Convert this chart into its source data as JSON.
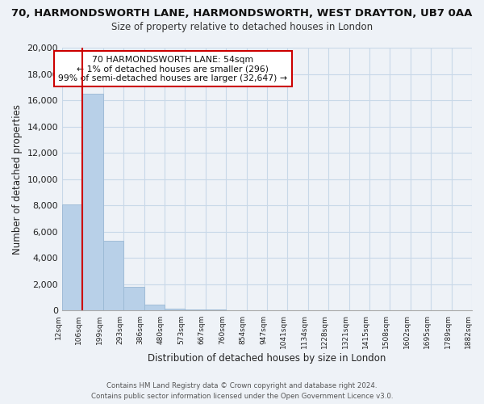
{
  "title": "70, HARMONDSWORTH LANE, HARMONDSWORTH, WEST DRAYTON, UB7 0AA",
  "subtitle": "Size of property relative to detached houses in London",
  "xlabel": "Distribution of detached houses by size in London",
  "ylabel": "Number of detached properties",
  "bar_color": "#b8d0e8",
  "bar_edge_color": "#9ab8d4",
  "annotation_box_color": "#ffffff",
  "annotation_box_edge": "#cc0000",
  "marker_line_color": "#cc0000",
  "grid_color": "#c8d8e8",
  "background_color": "#eef2f7",
  "bin_labels": [
    "12sqm",
    "106sqm",
    "199sqm",
    "293sqm",
    "386sqm",
    "480sqm",
    "573sqm",
    "667sqm",
    "760sqm",
    "854sqm",
    "947sqm",
    "1041sqm",
    "1134sqm",
    "1228sqm",
    "1321sqm",
    "1415sqm",
    "1508sqm",
    "1602sqm",
    "1695sqm",
    "1789sqm",
    "1882sqm"
  ],
  "bar_values": [
    8050,
    16500,
    5300,
    1800,
    430,
    160,
    110,
    60,
    0,
    0,
    0,
    0,
    0,
    0,
    0,
    0,
    0,
    0,
    0,
    0
  ],
  "ylim": [
    0,
    20000
  ],
  "yticks": [
    0,
    2000,
    4000,
    6000,
    8000,
    10000,
    12000,
    14000,
    16000,
    18000,
    20000
  ],
  "annotation_title": "70 HARMONDSWORTH LANE: 54sqm",
  "annotation_line1": "← 1% of detached houses are smaller (296)",
  "annotation_line2": "99% of semi-detached houses are larger (32,647) →",
  "footer_line1": "Contains HM Land Registry data © Crown copyright and database right 2024.",
  "footer_line2": "Contains public sector information licensed under the Open Government Licence v3.0."
}
